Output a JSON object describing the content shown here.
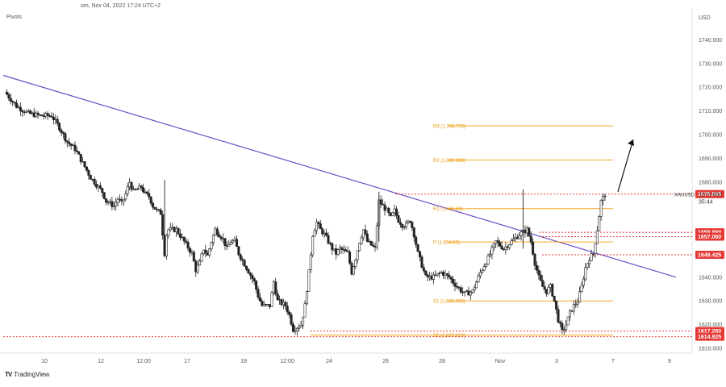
{
  "header": {
    "title": "om, Nov 04, 2022 17:24 UTC+2"
  },
  "indicator": {
    "label": "Pivots"
  },
  "brand": {
    "logo": "TV",
    "name": "TradingView"
  },
  "chart_data": {
    "type": "candlestick",
    "symbol": "XAUUSD",
    "currency": "USD",
    "current_price": "1673.650",
    "countdown": "35:44",
    "ylim": [
      1608,
      1752
    ],
    "x_ticks": [
      "10",
      "12",
      "12:00",
      "17",
      "19",
      "12:00",
      "24",
      "26",
      "28",
      "Nov",
      "3",
      "7",
      "9"
    ],
    "y_ticks": [
      "1740.000",
      "1730.000",
      "1720.000",
      "1710.000",
      "1700.000",
      "1690.000",
      "1680.000",
      "1640.000",
      "1630.000",
      "1620.000",
      "1610.000"
    ],
    "pivots": [
      {
        "name": "R3",
        "label": "R3 (1,703.772)",
        "value": 1703.772
      },
      {
        "name": "R2",
        "label": "R2 (1,689.388)",
        "value": 1689.388
      },
      {
        "name": "R1",
        "label": "R1 (1,668.88)",
        "value": 1668.88
      },
      {
        "name": "P",
        "label": "P (1,654.83)",
        "value": 1654.83
      },
      {
        "name": "S1",
        "label": "S1 (1,630.002)",
        "value": 1630.002
      },
      {
        "name": "S2",
        "label": "S2 (1,615.618)",
        "value": 1615.618
      }
    ],
    "price_levels": [
      {
        "label": "1675.005",
        "value": 1675.005,
        "color": "#e53935",
        "dotted": true
      },
      {
        "label": "1658.890",
        "value": 1658.89,
        "color": "#e53935",
        "dotted": true
      },
      {
        "label": "1657.060",
        "value": 1657.06,
        "color": "#e53935",
        "dotted": true
      },
      {
        "label": "1649.425",
        "value": 1649.425,
        "color": "#e53935",
        "dotted": true
      },
      {
        "label": "1617.280",
        "value": 1617.28,
        "color": "#e53935",
        "dotted": true
      },
      {
        "label": "1614.925",
        "value": 1614.925,
        "color": "#e53935",
        "dotted": true
      }
    ],
    "trendline": {
      "start": [
        0,
        1725
      ],
      "end": [
        1,
        1640
      ],
      "color": "#6f4bc9"
    },
    "price_series": [
      {
        "i": 0,
        "v": 1718
      },
      {
        "i": 3,
        "v": 1712
      },
      {
        "i": 6,
        "v": 1709
      },
      {
        "i": 9,
        "v": 1708
      },
      {
        "i": 12,
        "v": 1708
      },
      {
        "i": 14,
        "v": 1703
      },
      {
        "i": 16,
        "v": 1697
      },
      {
        "i": 18,
        "v": 1694
      },
      {
        "i": 20,
        "v": 1688
      },
      {
        "i": 22,
        "v": 1682
      },
      {
        "i": 24,
        "v": 1678
      },
      {
        "i": 25,
        "v": 1676
      },
      {
        "i": 26,
        "v": 1672
      },
      {
        "i": 28,
        "v": 1670
      },
      {
        "i": 29,
        "v": 1673
      },
      {
        "i": 30,
        "v": 1671
      },
      {
        "i": 31,
        "v": 1675
      },
      {
        "i": 32,
        "v": 1680
      },
      {
        "i": 33,
        "v": 1676
      },
      {
        "i": 35,
        "v": 1678
      },
      {
        "i": 36,
        "v": 1675
      },
      {
        "i": 37,
        "v": 1674
      },
      {
        "i": 38,
        "v": 1670
      },
      {
        "i": 39,
        "v": 1668
      },
      {
        "i": 40,
        "v": 1667
      },
      {
        "i": 41,
        "v": 1650
      },
      {
        "i": 41.5,
        "v": 1658
      },
      {
        "i": 42,
        "v": 1660
      },
      {
        "i": 44,
        "v": 1660
      },
      {
        "i": 46,
        "v": 1655
      },
      {
        "i": 48,
        "v": 1650
      },
      {
        "i": 49,
        "v": 1643
      },
      {
        "i": 50,
        "v": 1646
      },
      {
        "i": 51,
        "v": 1652
      },
      {
        "i": 52,
        "v": 1649
      },
      {
        "i": 53,
        "v": 1655
      },
      {
        "i": 54,
        "v": 1660
      },
      {
        "i": 55,
        "v": 1658
      },
      {
        "i": 56,
        "v": 1656
      },
      {
        "i": 57,
        "v": 1652
      },
      {
        "i": 58,
        "v": 1655
      },
      {
        "i": 59,
        "v": 1655
      },
      {
        "i": 60,
        "v": 1650
      },
      {
        "i": 62,
        "v": 1644
      },
      {
        "i": 64,
        "v": 1638
      },
      {
        "i": 65,
        "v": 1632
      },
      {
        "i": 66,
        "v": 1628
      },
      {
        "i": 68,
        "v": 1628
      },
      {
        "i": 69,
        "v": 1638
      },
      {
        "i": 70,
        "v": 1630
      },
      {
        "i": 72,
        "v": 1628
      },
      {
        "i": 73,
        "v": 1624
      },
      {
        "i": 74,
        "v": 1618
      },
      {
        "i": 76,
        "v": 1620
      },
      {
        "i": 77,
        "v": 1628
      },
      {
        "i": 78,
        "v": 1642
      },
      {
        "i": 79,
        "v": 1658
      },
      {
        "i": 80,
        "v": 1663
      },
      {
        "i": 81,
        "v": 1660
      },
      {
        "i": 82,
        "v": 1658
      },
      {
        "i": 83,
        "v": 1655
      },
      {
        "i": 84,
        "v": 1652
      },
      {
        "i": 85,
        "v": 1650
      },
      {
        "i": 86,
        "v": 1652
      },
      {
        "i": 88,
        "v": 1650
      },
      {
        "i": 89,
        "v": 1642
      },
      {
        "i": 90,
        "v": 1648
      },
      {
        "i": 91,
        "v": 1655
      },
      {
        "i": 92,
        "v": 1660
      },
      {
        "i": 93,
        "v": 1655
      },
      {
        "i": 95,
        "v": 1652
      },
      {
        "i": 96,
        "v": 1672
      },
      {
        "i": 97,
        "v": 1670
      },
      {
        "i": 98,
        "v": 1668
      },
      {
        "i": 99,
        "v": 1665
      },
      {
        "i": 100,
        "v": 1668
      },
      {
        "i": 101,
        "v": 1664
      },
      {
        "i": 102,
        "v": 1662
      },
      {
        "i": 103,
        "v": 1662
      },
      {
        "i": 104,
        "v": 1664
      },
      {
        "i": 105,
        "v": 1658
      },
      {
        "i": 106,
        "v": 1650
      },
      {
        "i": 107,
        "v": 1645
      },
      {
        "i": 108,
        "v": 1640
      },
      {
        "i": 110,
        "v": 1640
      },
      {
        "i": 112,
        "v": 1642
      },
      {
        "i": 114,
        "v": 1640
      },
      {
        "i": 116,
        "v": 1636
      },
      {
        "i": 118,
        "v": 1633
      },
      {
        "i": 120,
        "v": 1634
      },
      {
        "i": 122,
        "v": 1642
      },
      {
        "i": 124,
        "v": 1648
      },
      {
        "i": 126,
        "v": 1655
      },
      {
        "i": 128,
        "v": 1652
      },
      {
        "i": 130,
        "v": 1655
      },
      {
        "i": 132,
        "v": 1658
      },
      {
        "i": 134,
        "v": 1660
      },
      {
        "i": 135,
        "v": 1655
      },
      {
        "i": 136,
        "v": 1646
      },
      {
        "i": 137,
        "v": 1640
      },
      {
        "i": 138,
        "v": 1636
      },
      {
        "i": 139,
        "v": 1634
      },
      {
        "i": 140,
        "v": 1636
      },
      {
        "i": 141,
        "v": 1630
      },
      {
        "i": 142,
        "v": 1622
      },
      {
        "i": 143,
        "v": 1617
      },
      {
        "i": 144,
        "v": 1620
      },
      {
        "i": 145,
        "v": 1625
      },
      {
        "i": 146,
        "v": 1628
      },
      {
        "i": 147,
        "v": 1630
      },
      {
        "i": 148,
        "v": 1636
      },
      {
        "i": 149,
        "v": 1644
      },
      {
        "i": 150,
        "v": 1648
      },
      {
        "i": 151,
        "v": 1650
      },
      {
        "i": 152,
        "v": 1660
      },
      {
        "i": 153,
        "v": 1672
      },
      {
        "i": 154,
        "v": 1675
      }
    ],
    "projection_arrow": {
      "from": [
        155,
        1676
      ],
      "to": [
        160,
        1698
      ]
    }
  }
}
